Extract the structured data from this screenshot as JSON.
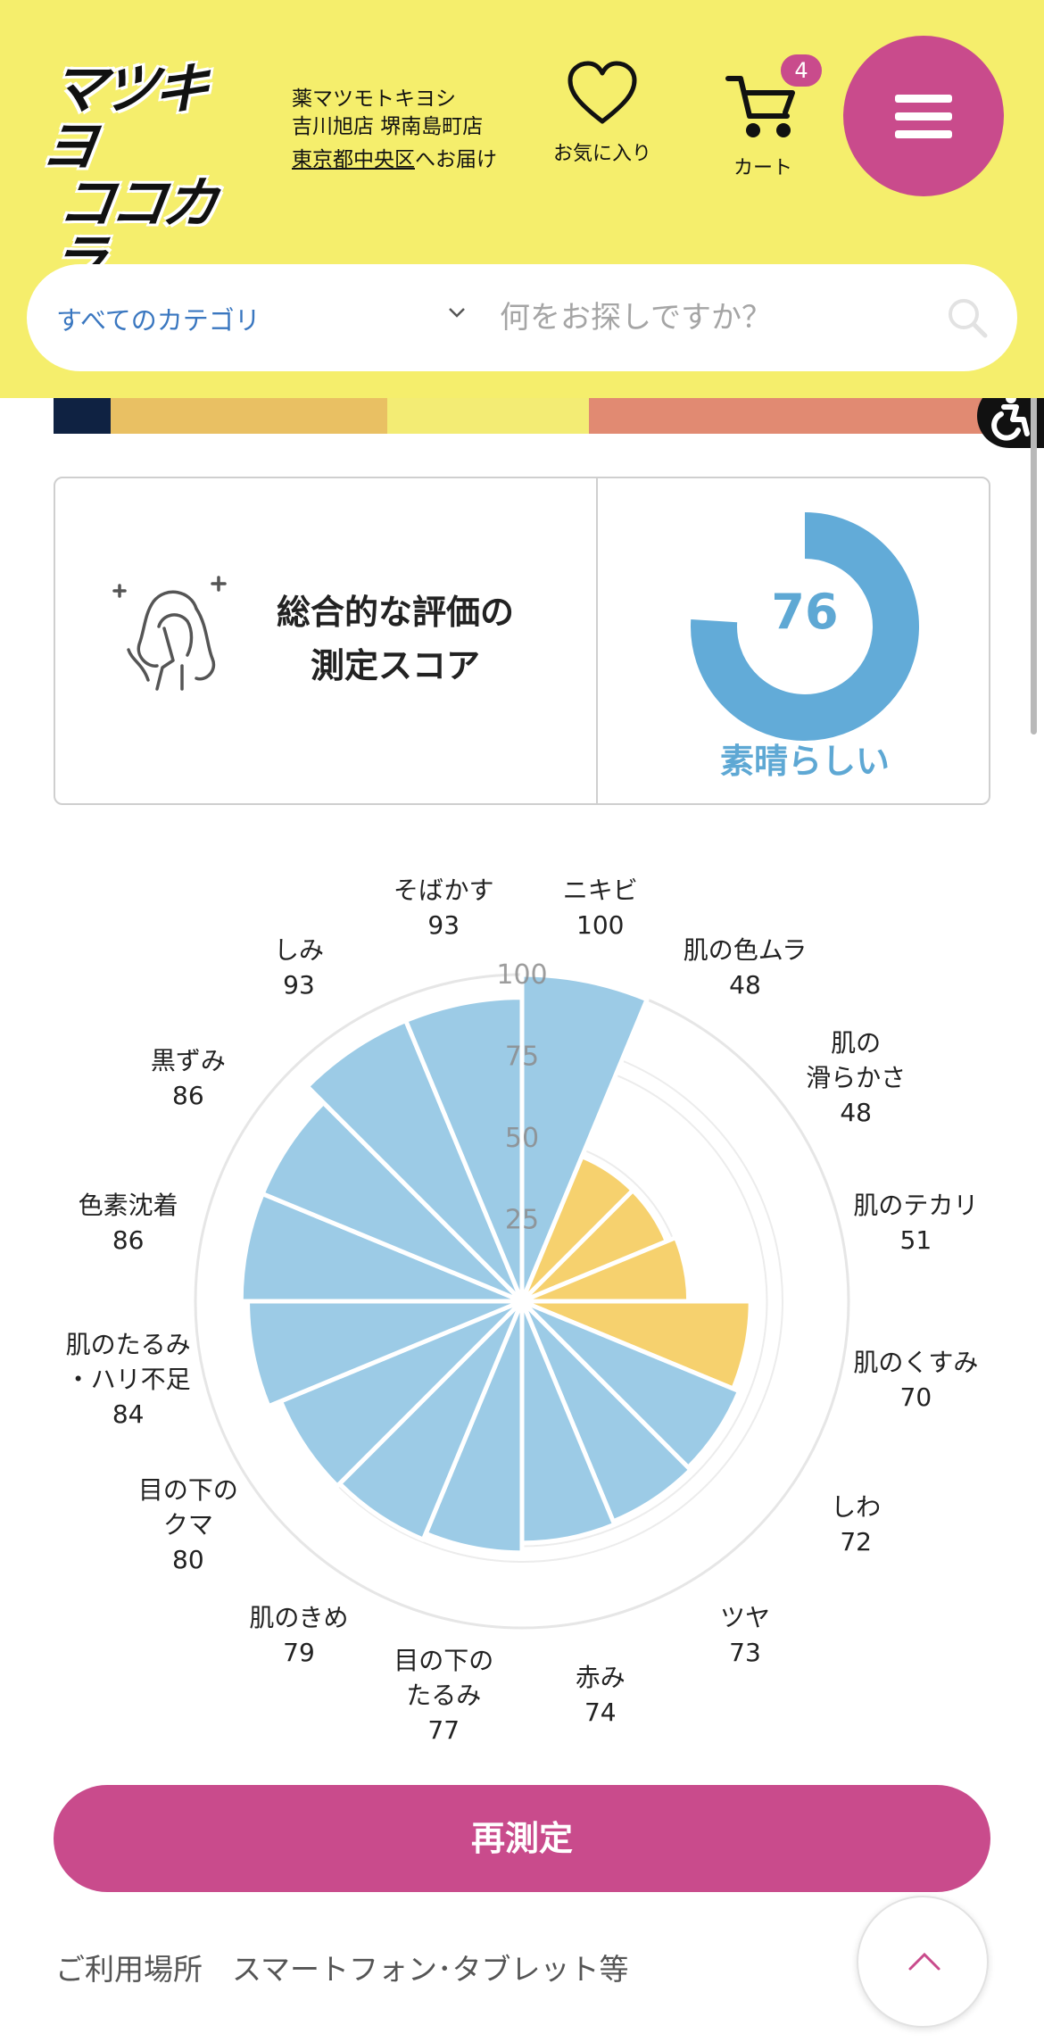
{
  "header": {
    "logo_line1": "マツキヨ",
    "logo_line2": "ココカラ",
    "store_line1": "薬マツモトキヨシ",
    "store_line2": "吉川旭店 堺南島町店",
    "delivery_pref": "東京都中央区",
    "delivery_suffix": "へお届け",
    "favorites_label": "お気に入り",
    "cart_label": "カート",
    "cart_count": "4"
  },
  "search": {
    "category": "すべてのカテゴリ",
    "placeholder": "何をお探しですか？"
  },
  "score_card": {
    "title_line1": "総合的な評価の",
    "title_line2": "測定スコア",
    "score": "76",
    "score_fraction": 0.76,
    "rating": "素晴らしい"
  },
  "chart_data": {
    "type": "polar-bar",
    "rmax": 100,
    "ring_ticks": [
      "25",
      "50",
      "75",
      "100"
    ],
    "colors": {
      "high": "#9ccbe6",
      "low": "#f6d16e"
    },
    "items": [
      {
        "label": "ニキビ",
        "value": 100,
        "color": "high"
      },
      {
        "label": "肌の色ムラ",
        "value": 48,
        "color": "low"
      },
      {
        "label": "肌の滑らかさ",
        "label_lines": [
          "肌の",
          "滑らかさ"
        ],
        "value": 48,
        "color": "low"
      },
      {
        "label": "肌のテカリ",
        "value": 51,
        "color": "low"
      },
      {
        "label": "肌のくすみ",
        "value": 70,
        "color": "low"
      },
      {
        "label": "しわ",
        "value": 72,
        "color": "high"
      },
      {
        "label": "ツヤ",
        "value": 73,
        "color": "high"
      },
      {
        "label": "赤み",
        "value": 74,
        "color": "high"
      },
      {
        "label": "目の下のたるみ",
        "label_lines": [
          "目の下の",
          "たるみ"
        ],
        "value": 77,
        "color": "high"
      },
      {
        "label": "肌のきめ",
        "value": 79,
        "color": "high"
      },
      {
        "label": "目の下のクマ",
        "label_lines": [
          "目の下の",
          "クマ"
        ],
        "value": 80,
        "color": "high"
      },
      {
        "label": "肌のたるみ・ハリ不足",
        "label_lines": [
          "肌のたるみ",
          "・ハリ不足"
        ],
        "value": 84,
        "color": "high"
      },
      {
        "label": "色素沈着",
        "value": 86,
        "color": "high"
      },
      {
        "label": "黒ずみ",
        "value": 86,
        "color": "high"
      },
      {
        "label": "しみ",
        "value": 93,
        "color": "high"
      },
      {
        "label": "そばかす",
        "value": 93,
        "color": "high"
      }
    ]
  },
  "actions": {
    "remeasure": "再測定"
  },
  "footer": {
    "usage": "ご利用場所　スマートフォン･タブレット等"
  }
}
